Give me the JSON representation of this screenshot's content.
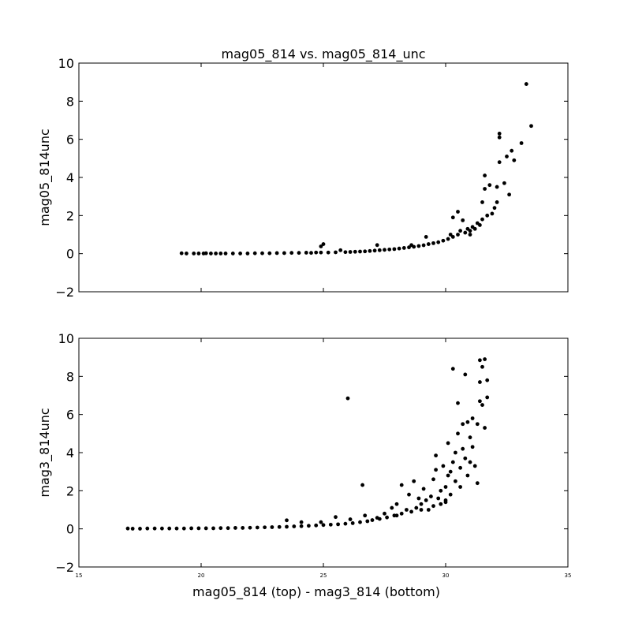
{
  "chart_data": [
    {
      "type": "scatter",
      "title": "mag05_814 vs. mag05_814_unc",
      "xlabel": "",
      "ylabel": "mag05_814unc",
      "xlim": [
        15,
        35
      ],
      "ylim": [
        -2,
        10
      ],
      "yticks": [
        "−2",
        "0",
        "2",
        "4",
        "6",
        "8",
        "10"
      ],
      "xticks": [],
      "grid": false,
      "marker_color": "#000000",
      "points": [
        [
          19.2,
          0.02
        ],
        [
          19.4,
          0.01
        ],
        [
          19.7,
          0.01
        ],
        [
          19.9,
          0.01
        ],
        [
          20.1,
          0.01
        ],
        [
          20.2,
          0.02
        ],
        [
          20.4,
          0.01
        ],
        [
          20.6,
          0.01
        ],
        [
          20.8,
          0.01
        ],
        [
          21.0,
          0.01
        ],
        [
          21.3,
          0.01
        ],
        [
          21.6,
          0.01
        ],
        [
          21.9,
          0.01
        ],
        [
          22.2,
          0.02
        ],
        [
          22.5,
          0.02
        ],
        [
          22.8,
          0.02
        ],
        [
          23.1,
          0.03
        ],
        [
          23.4,
          0.03
        ],
        [
          23.7,
          0.04
        ],
        [
          24.0,
          0.04
        ],
        [
          24.3,
          0.05
        ],
        [
          24.5,
          0.04
        ],
        [
          24.7,
          0.06
        ],
        [
          24.9,
          0.06
        ],
        [
          24.9,
          0.38
        ],
        [
          25.0,
          0.5
        ],
        [
          25.2,
          0.06
        ],
        [
          25.5,
          0.07
        ],
        [
          25.7,
          0.18
        ],
        [
          25.9,
          0.08
        ],
        [
          26.1,
          0.09
        ],
        [
          26.3,
          0.1
        ],
        [
          26.5,
          0.11
        ],
        [
          26.7,
          0.12
        ],
        [
          26.9,
          0.14
        ],
        [
          27.1,
          0.16
        ],
        [
          27.2,
          0.45
        ],
        [
          27.3,
          0.18
        ],
        [
          27.5,
          0.2
        ],
        [
          27.7,
          0.22
        ],
        [
          27.9,
          0.24
        ],
        [
          28.1,
          0.27
        ],
        [
          28.3,
          0.3
        ],
        [
          28.5,
          0.33
        ],
        [
          28.6,
          0.45
        ],
        [
          28.7,
          0.36
        ],
        [
          28.9,
          0.4
        ],
        [
          29.1,
          0.44
        ],
        [
          29.2,
          0.88
        ],
        [
          29.3,
          0.5
        ],
        [
          29.5,
          0.55
        ],
        [
          29.7,
          0.6
        ],
        [
          29.9,
          0.68
        ],
        [
          30.1,
          0.77
        ],
        [
          30.2,
          1.0
        ],
        [
          30.3,
          0.88
        ],
        [
          30.3,
          1.9
        ],
        [
          30.5,
          1.0
        ],
        [
          30.5,
          2.2
        ],
        [
          30.6,
          1.2
        ],
        [
          30.7,
          1.75
        ],
        [
          30.8,
          1.1
        ],
        [
          30.9,
          1.3
        ],
        [
          31.0,
          1.0
        ],
        [
          31.1,
          1.4
        ],
        [
          31.2,
          1.3
        ],
        [
          31.3,
          1.6
        ],
        [
          31.4,
          1.5
        ],
        [
          31.5,
          1.8
        ],
        [
          31.5,
          2.7
        ],
        [
          31.6,
          4.1
        ],
        [
          31.6,
          3.4
        ],
        [
          31.7,
          2.0
        ],
        [
          31.8,
          3.6
        ],
        [
          31.9,
          2.1
        ],
        [
          32.0,
          2.4
        ],
        [
          32.1,
          3.5
        ],
        [
          32.1,
          2.7
        ],
        [
          32.2,
          6.3
        ],
        [
          32.2,
          6.1
        ],
        [
          32.2,
          4.8
        ],
        [
          32.4,
          3.7
        ],
        [
          32.5,
          5.1
        ],
        [
          32.6,
          3.1
        ],
        [
          32.7,
          5.4
        ],
        [
          32.8,
          4.9
        ],
        [
          33.1,
          5.8
        ],
        [
          33.3,
          8.9
        ],
        [
          33.5,
          6.7
        ],
        [
          31.0,
          1.2
        ]
      ]
    },
    {
      "type": "scatter",
      "title": "",
      "xlabel": "mag05_814 (top) - mag3_814 (bottom)",
      "ylabel": "mag3_814unc",
      "xlim": [
        15,
        35
      ],
      "ylim": [
        -2,
        10
      ],
      "yticks": [
        "−2",
        "0",
        "2",
        "4",
        "6",
        "8",
        "10"
      ],
      "xticks": [
        "15",
        "20",
        "25",
        "30",
        "35"
      ],
      "grid": false,
      "marker_color": "#000000",
      "points": [
        [
          17.0,
          0.02
        ],
        [
          17.2,
          0.01
        ],
        [
          17.5,
          0.01
        ],
        [
          17.8,
          0.02
        ],
        [
          18.1,
          0.02
        ],
        [
          18.4,
          0.02
        ],
        [
          18.7,
          0.02
        ],
        [
          19.0,
          0.02
        ],
        [
          19.3,
          0.02
        ],
        [
          19.6,
          0.03
        ],
        [
          19.9,
          0.03
        ],
        [
          20.2,
          0.03
        ],
        [
          20.5,
          0.03
        ],
        [
          20.8,
          0.04
        ],
        [
          21.1,
          0.04
        ],
        [
          21.4,
          0.05
        ],
        [
          21.7,
          0.05
        ],
        [
          22.0,
          0.06
        ],
        [
          22.3,
          0.07
        ],
        [
          22.6,
          0.08
        ],
        [
          22.9,
          0.09
        ],
        [
          23.2,
          0.1
        ],
        [
          23.5,
          0.45
        ],
        [
          23.5,
          0.11
        ],
        [
          23.8,
          0.13
        ],
        [
          24.1,
          0.14
        ],
        [
          24.1,
          0.35
        ],
        [
          24.4,
          0.16
        ],
        [
          24.7,
          0.18
        ],
        [
          24.9,
          0.35
        ],
        [
          25.0,
          0.2
        ],
        [
          25.3,
          0.22
        ],
        [
          25.5,
          0.62
        ],
        [
          25.6,
          0.24
        ],
        [
          25.9,
          0.27
        ],
        [
          26.0,
          6.85
        ],
        [
          26.1,
          0.5
        ],
        [
          26.2,
          0.3
        ],
        [
          26.5,
          0.35
        ],
        [
          26.6,
          2.3
        ],
        [
          26.7,
          0.7
        ],
        [
          26.8,
          0.4
        ],
        [
          27.0,
          0.46
        ],
        [
          27.3,
          0.52
        ],
        [
          27.5,
          0.8
        ],
        [
          27.6,
          0.6
        ],
        [
          27.8,
          1.1
        ],
        [
          27.9,
          0.7
        ],
        [
          28.0,
          1.3
        ],
        [
          28.2,
          0.8
        ],
        [
          28.2,
          2.3
        ],
        [
          28.4,
          1.0
        ],
        [
          28.5,
          1.8
        ],
        [
          28.6,
          0.9
        ],
        [
          28.7,
          2.5
        ],
        [
          28.8,
          1.1
        ],
        [
          28.9,
          1.6
        ],
        [
          29.0,
          1.3
        ],
        [
          29.1,
          2.1
        ],
        [
          29.2,
          1.5
        ],
        [
          29.3,
          1.0
        ],
        [
          29.4,
          1.7
        ],
        [
          29.5,
          2.6
        ],
        [
          29.5,
          1.2
        ],
        [
          29.6,
          3.1
        ],
        [
          29.6,
          3.85
        ],
        [
          29.7,
          1.6
        ],
        [
          29.8,
          2.0
        ],
        [
          29.8,
          1.3
        ],
        [
          29.9,
          3.3
        ],
        [
          30.0,
          2.2
        ],
        [
          30.0,
          1.5
        ],
        [
          30.1,
          4.5
        ],
        [
          30.1,
          2.8
        ],
        [
          30.2,
          3.0
        ],
        [
          30.2,
          1.8
        ],
        [
          30.3,
          8.4
        ],
        [
          30.3,
          3.5
        ],
        [
          30.4,
          4.0
        ],
        [
          30.4,
          2.5
        ],
        [
          30.5,
          6.6
        ],
        [
          30.5,
          5.0
        ],
        [
          30.6,
          3.2
        ],
        [
          30.6,
          2.2
        ],
        [
          30.7,
          5.5
        ],
        [
          30.7,
          4.2
        ],
        [
          30.8,
          8.1
        ],
        [
          30.8,
          3.7
        ],
        [
          30.9,
          5.6
        ],
        [
          30.9,
          2.8
        ],
        [
          31.0,
          4.8
        ],
        [
          31.0,
          3.5
        ],
        [
          31.1,
          5.8
        ],
        [
          31.1,
          4.3
        ],
        [
          31.2,
          3.3
        ],
        [
          31.3,
          5.5
        ],
        [
          31.3,
          2.4
        ],
        [
          31.4,
          7.7
        ],
        [
          31.4,
          8.85
        ],
        [
          31.4,
          6.7
        ],
        [
          31.5,
          8.5
        ],
        [
          31.5,
          6.5
        ],
        [
          31.6,
          8.9
        ],
        [
          31.6,
          5.3
        ],
        [
          31.7,
          7.8
        ],
        [
          31.7,
          6.9
        ],
        [
          27.2,
          0.58
        ],
        [
          28.0,
          0.7
        ],
        [
          29.0,
          1.0
        ],
        [
          30.0,
          1.4
        ]
      ]
    }
  ]
}
